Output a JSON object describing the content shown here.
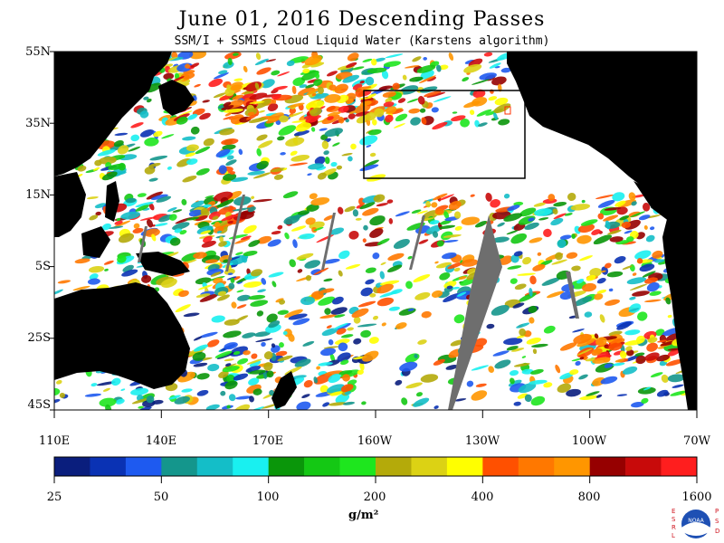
{
  "title": "June 01, 2016  Descending Passes",
  "subtitle": "SSM/I + SSMIS Cloud Liquid Water (Karstens algorithm)",
  "lat_labels": [
    "55N",
    "35N",
    "15N",
    "5S",
    "25S",
    "45S"
  ],
  "lon_labels": [
    "110E",
    "140E",
    "170E",
    "160W",
    "130W",
    "100W",
    "70W"
  ],
  "colorbar": {
    "colors": [
      "#0a1e7d",
      "#0a32b4",
      "#1e5af0",
      "#14968c",
      "#14bec8",
      "#19f0f0",
      "#0a960a",
      "#14c814",
      "#1ee61e",
      "#b4aa0a",
      "#dcd214",
      "#ffff00",
      "#ff5000",
      "#ff7800",
      "#ff9600",
      "#960000",
      "#c80a0a",
      "#ff1e1e"
    ],
    "tick_labels": [
      "25",
      "50",
      "100",
      "200",
      "400",
      "800",
      "1600"
    ],
    "units": "g/m²"
  },
  "legend_logo": {
    "left_letters": [
      "E",
      "S",
      "R",
      "L"
    ],
    "right_letters": [
      "P",
      "S",
      "D"
    ],
    "badge": "NOAA"
  },
  "colors": {
    "land": "#000000",
    "clear_ocean": "#ffffff",
    "no_data_swath_gap": "#6e6e6e",
    "highlight_box": "#000000"
  }
}
